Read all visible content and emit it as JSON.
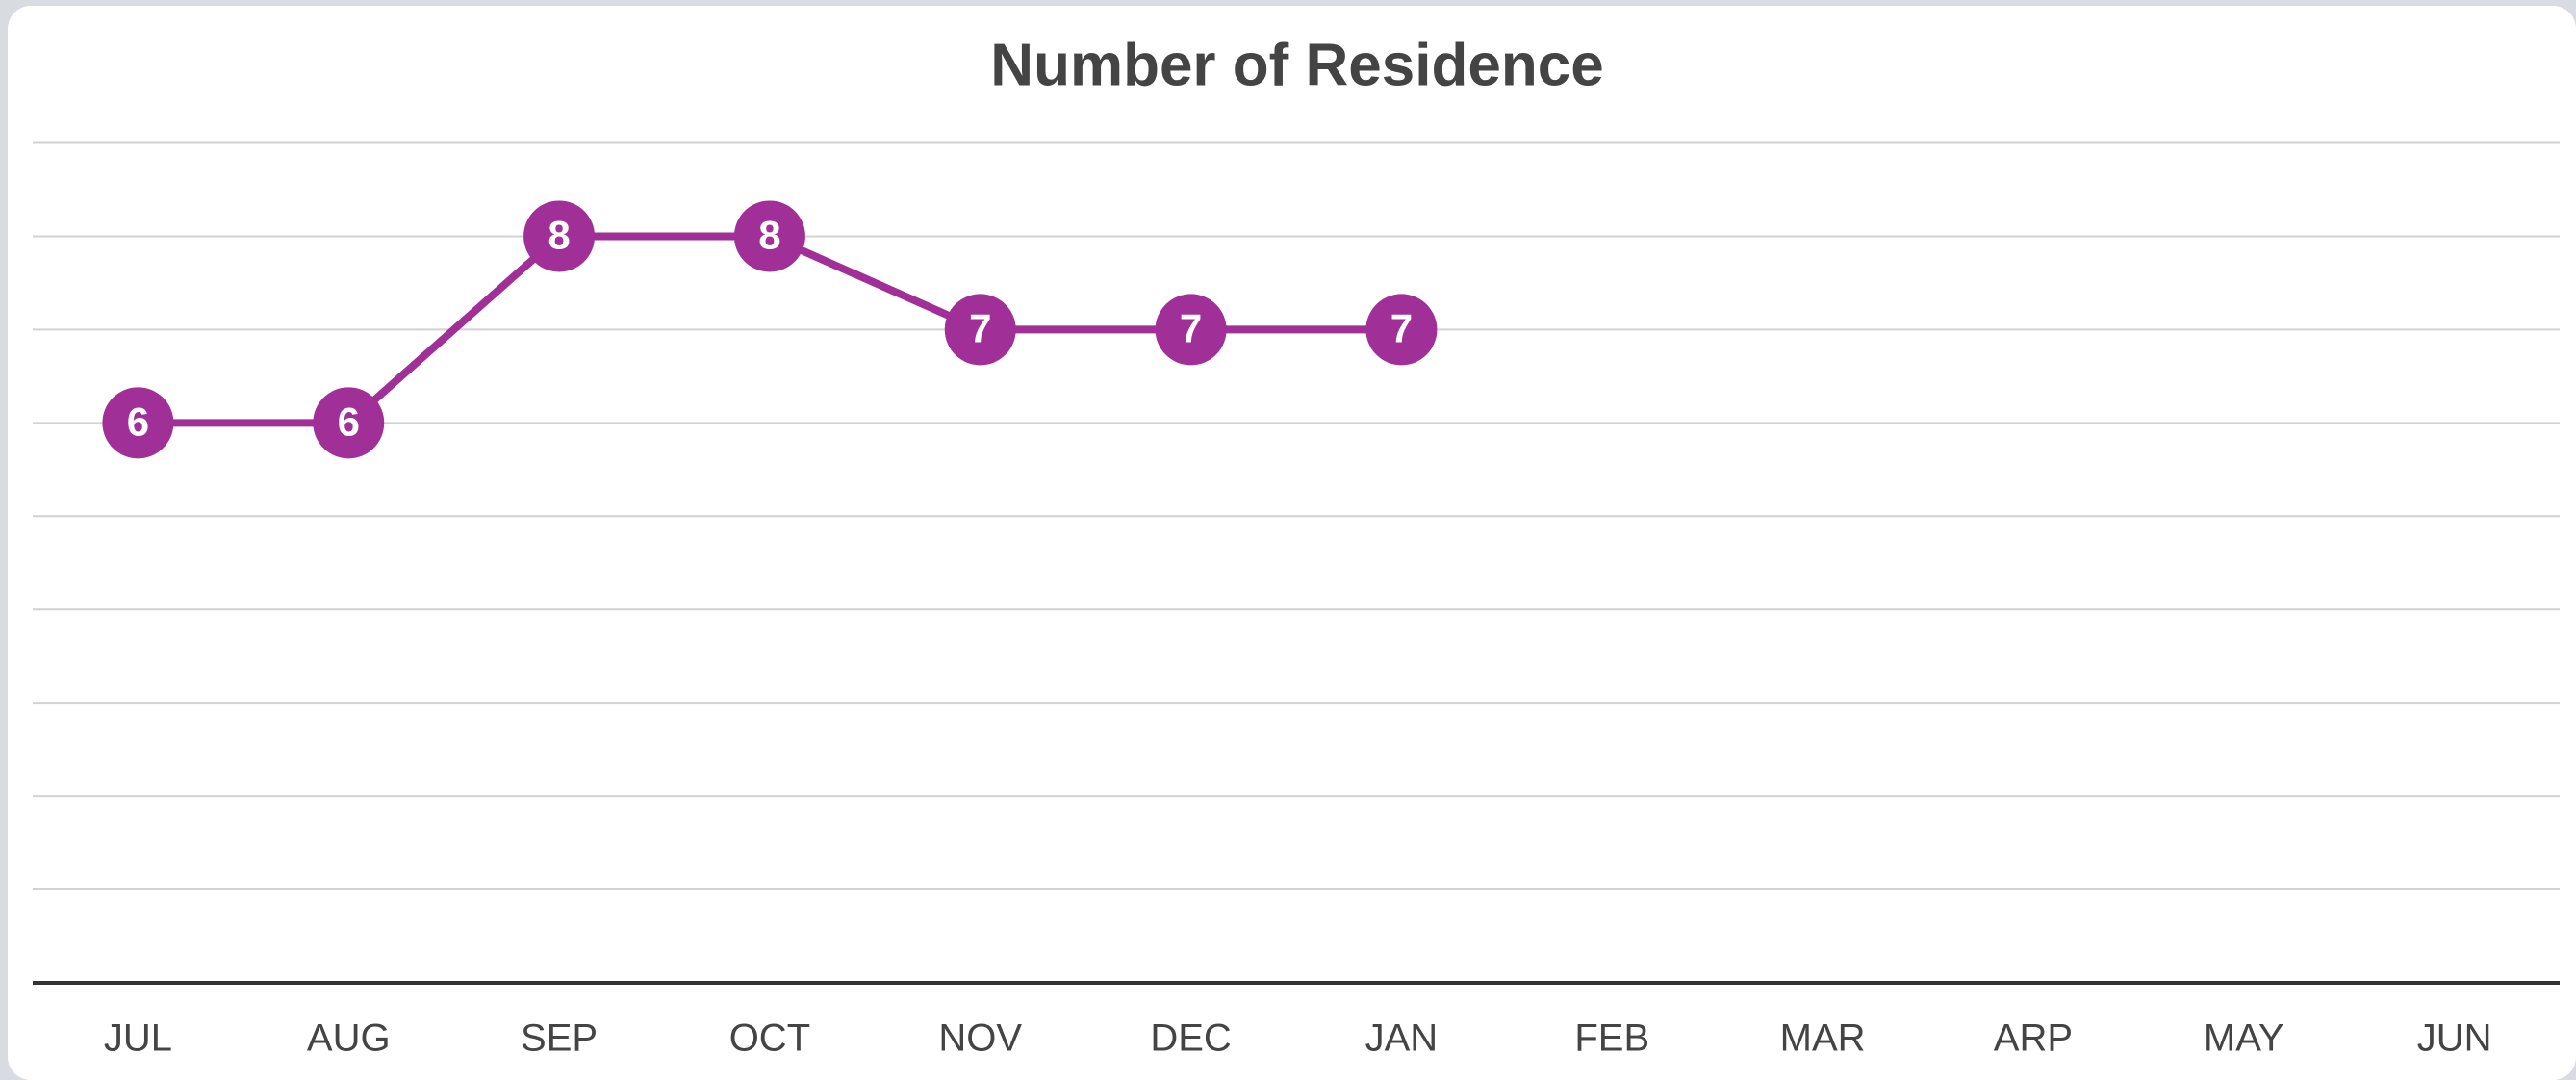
{
  "chart_data": {
    "type": "line",
    "title": "Number of Residence",
    "categories": [
      "JUL",
      "AUG",
      "SEP",
      "OCT",
      "NOV",
      "DEC",
      "JAN",
      "FEB",
      "MAR",
      "ARP",
      "MAY",
      "JUN"
    ],
    "series": [
      {
        "name": "Number of Residence",
        "color": "#a02f98",
        "values": [
          6,
          6,
          8,
          8,
          7,
          7,
          7,
          null,
          null,
          null,
          null,
          null
        ]
      }
    ],
    "ylim": [
      0,
      9
    ],
    "yticks": [
      0,
      1,
      2,
      3,
      4,
      5,
      6,
      7,
      8,
      9
    ],
    "grid": true
  }
}
